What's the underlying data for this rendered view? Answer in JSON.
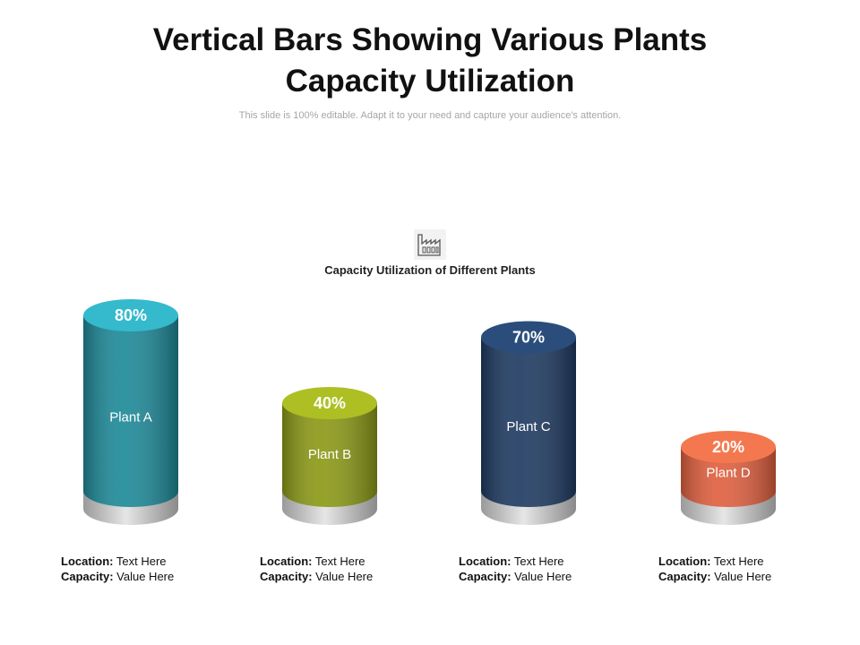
{
  "title_line1": "Vertical Bars Showing Various Plants",
  "title_line2": "Capacity Utilization",
  "subtitle": "This slide is 100% editable. Adapt it to your need and capture your audience's attention.",
  "icon": "factory-icon",
  "chart_data": {
    "type": "bar",
    "title": "Capacity Utilization of Different Plants",
    "categories": [
      "Plant A",
      "Plant B",
      "Plant C",
      "Plant D"
    ],
    "values": [
      80,
      40,
      70,
      20
    ],
    "value_labels": [
      "80%",
      "40%",
      "70%",
      "20%"
    ],
    "ylim": [
      0,
      100
    ],
    "colors": [
      {
        "side": "#1e8a99",
        "top": "#35b9cc"
      },
      {
        "side": "#8c9a17",
        "top": "#adbf23"
      },
      {
        "side": "#1f3b62",
        "top": "#2a4d7c"
      },
      {
        "side": "#e0603f",
        "top": "#f4784f"
      }
    ]
  },
  "plants": [
    {
      "location_label": "Location:",
      "location_value": "Text Here",
      "capacity_label": "Capacity:",
      "capacity_value": "Value Here"
    },
    {
      "location_label": "Location:",
      "location_value": "Text Here",
      "capacity_label": "Capacity:",
      "capacity_value": "Value Here"
    },
    {
      "location_label": "Location:",
      "location_value": "Text Here",
      "capacity_label": "Capacity:",
      "capacity_value": "Value Here"
    },
    {
      "location_label": "Location:",
      "location_value": "Text Here",
      "capacity_label": "Capacity:",
      "capacity_value": "Value Here"
    }
  ]
}
